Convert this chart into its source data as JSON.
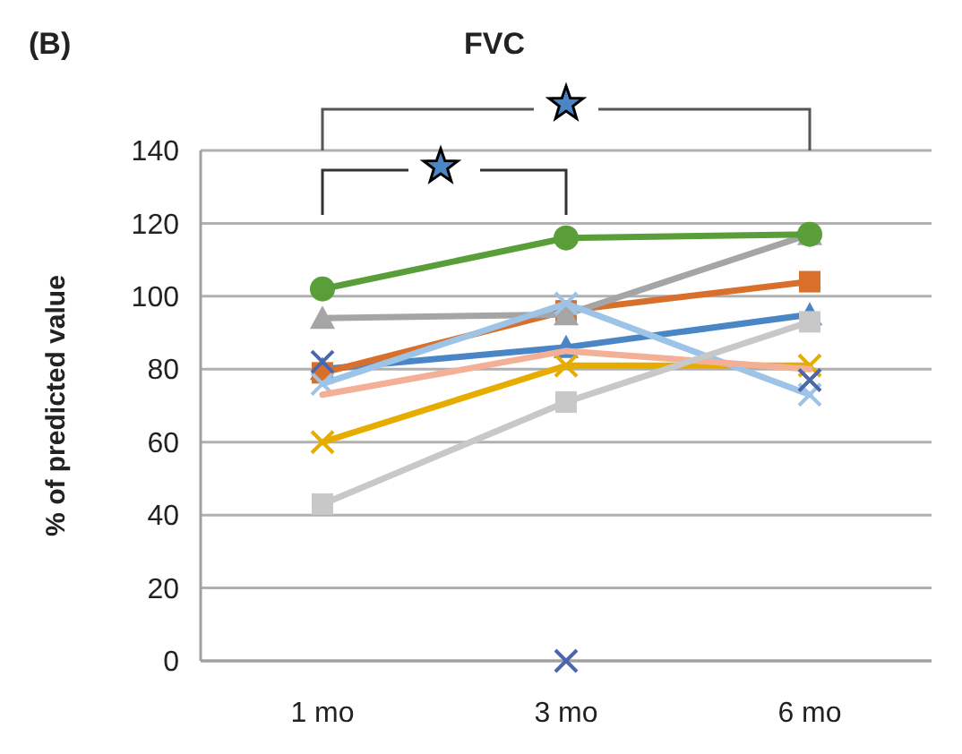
{
  "chart_data": {
    "type": "line",
    "title": "FVC",
    "ylabel": "% of predicted value",
    "annotations": [
      "(B)"
    ],
    "categories": [
      "1 mo",
      "3 mo",
      "6 mo"
    ],
    "ylim": [
      0,
      140
    ],
    "yticks": [
      0,
      20,
      40,
      60,
      80,
      100,
      120,
      140
    ],
    "grid": "y",
    "series": [
      {
        "color": "#4a86c5",
        "marker": "triangle",
        "values": [
          80,
          86,
          95
        ]
      },
      {
        "color": "#d8702c",
        "marker": "square",
        "values": [
          79,
          96,
          104
        ]
      },
      {
        "color": "#a5a5a5",
        "marker": "triangle",
        "values": [
          94,
          95,
          117
        ]
      },
      {
        "color": "#e6ac00",
        "marker": "cross",
        "values": [
          60,
          81,
          81
        ]
      },
      {
        "color": "#9dc3e6",
        "marker": "cross",
        "values": [
          76,
          98,
          73
        ]
      },
      {
        "color": "#5a9e3a",
        "marker": "circle",
        "values": [
          102,
          116,
          117
        ]
      },
      {
        "color": "#f4b096",
        "marker": "none",
        "values": [
          73,
          85,
          80
        ]
      },
      {
        "color": "#c8c8c8",
        "marker": "square",
        "values": [
          43,
          71,
          93
        ]
      },
      {
        "type": "scatter",
        "color": "#4a66ac",
        "marker": "cross",
        "values": [
          82,
          0,
          77
        ]
      }
    ]
  }
}
